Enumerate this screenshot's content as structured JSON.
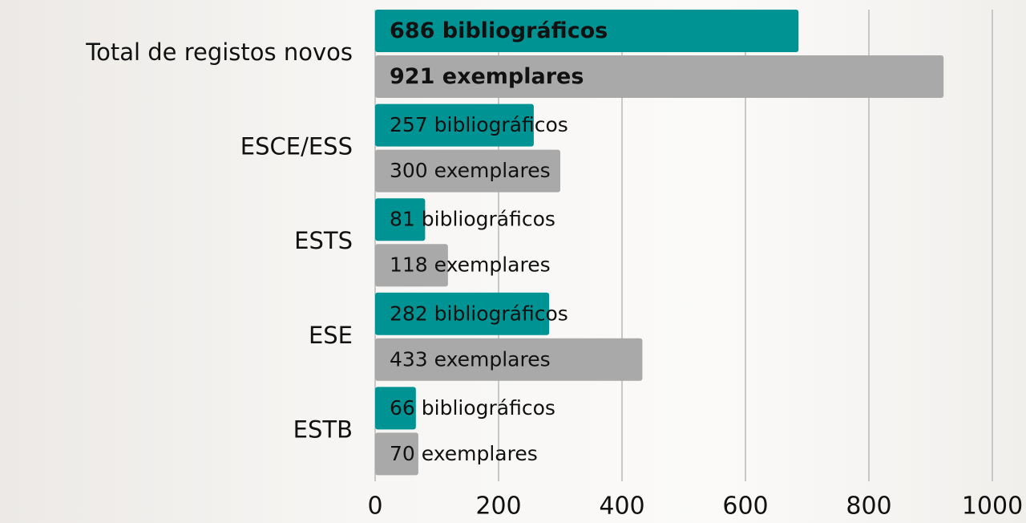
{
  "chart_data": {
    "type": "hbar",
    "categories": [
      "Total de registos novos",
      "ESCE/ESS",
      "ESTS",
      "ESE",
      "ESTB"
    ],
    "series": [
      {
        "color": "#009393",
        "values": [
          686,
          257,
          81,
          282,
          66
        ],
        "value_labels": [
          "686 bibliográficos",
          "257 bibliográficos",
          "81 bibliográficos",
          "282 bibliográficos",
          "66 bibliográficos"
        ]
      },
      {
        "color": "#a9a9a9",
        "values": [
          921,
          300,
          118,
          433,
          70
        ],
        "value_labels": [
          "921 exemplares",
          "300 exemplares",
          "118 exemplares",
          "433 exemplares",
          "70 exemplares"
        ]
      }
    ],
    "xlim": [
      0,
      1000
    ],
    "xticks": [
      0,
      200,
      400,
      600,
      800,
      1000
    ],
    "grid": true
  }
}
